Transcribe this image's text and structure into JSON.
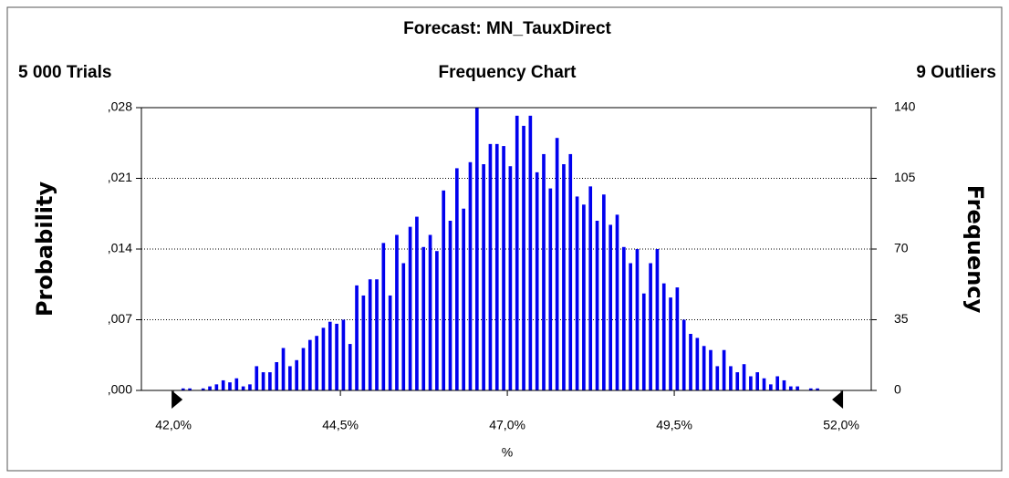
{
  "chart_data": {
    "type": "histogram",
    "title": "Forecast: MN_TauxDirect",
    "trials": "5 000 Trials",
    "subtitle": "Frequency Chart",
    "outliers": "9 Outliers",
    "ylabel": "Probability",
    "y2label": "Frequency",
    "xlabel": "%",
    "bins": [
      42.0,
      42.1,
      42.2,
      42.3,
      42.4,
      42.5,
      42.6,
      42.7,
      42.8,
      42.9,
      43.0,
      43.1,
      43.2,
      43.3,
      43.4,
      43.5,
      43.6,
      43.7,
      43.8,
      43.9,
      44.0,
      44.1,
      44.2,
      44.3,
      44.4,
      44.5,
      44.6,
      44.7,
      44.8,
      44.9,
      45.0,
      45.1,
      45.2,
      45.3,
      45.4,
      45.5,
      45.6,
      45.7,
      45.8,
      45.9,
      46.0,
      46.1,
      46.2,
      46.3,
      46.4,
      46.5,
      46.6,
      46.7,
      46.8,
      46.9,
      47.0,
      47.1,
      47.2,
      47.3,
      47.4,
      47.5,
      47.6,
      47.7,
      47.8,
      47.9,
      48.0,
      48.1,
      48.2,
      48.3,
      48.4,
      48.5,
      48.6,
      48.7,
      48.8,
      48.9,
      49.0,
      49.1,
      49.2,
      49.3,
      49.4,
      49.5,
      49.6,
      49.7,
      49.8,
      49.9,
      50.0,
      50.1,
      50.2,
      50.3,
      50.4,
      50.5,
      50.6,
      50.7,
      50.8,
      50.9,
      51.0,
      51.1,
      51.2,
      51.3,
      51.4,
      51.5,
      51.6,
      51.7,
      51.8,
      51.9,
      52.0
    ],
    "series": [
      {
        "name": "Frequency",
        "color": "#0000ee",
        "axis": "y2",
        "values": [
          0,
          1,
          1,
          0,
          1,
          2,
          3,
          5,
          4,
          6,
          2,
          3,
          12,
          9,
          9,
          14,
          21,
          12,
          15,
          21,
          25,
          27,
          31,
          34,
          33,
          35,
          23,
          52,
          47,
          55,
          55,
          73,
          47,
          77,
          63,
          81,
          86,
          71,
          77,
          69,
          99,
          84,
          110,
          90,
          113,
          140,
          112,
          122,
          122,
          121,
          111,
          136,
          131,
          136,
          108,
          117,
          100,
          125,
          112,
          117,
          96,
          92,
          101,
          84,
          97,
          82,
          87,
          71,
          63,
          70,
          48,
          63,
          70,
          53,
          46,
          51,
          35,
          28,
          26,
          22,
          20,
          12,
          20,
          12,
          9,
          13,
          7,
          9,
          6,
          3,
          7,
          5,
          2,
          2,
          0,
          1,
          1,
          0,
          0,
          0
        ]
      }
    ],
    "xlim": [
      41.52,
      52.45
    ],
    "xticks": [
      {
        "value": 42.0,
        "label": "42,0%"
      },
      {
        "value": 44.5,
        "label": "44,5%"
      },
      {
        "value": 47.0,
        "label": "47,0%"
      },
      {
        "value": 49.5,
        "label": "49,5%"
      },
      {
        "value": 52.0,
        "label": "52,0%"
      }
    ],
    "ylim": [
      0,
      0.028
    ],
    "yticks": [
      {
        "value": 0,
        "label": ",000"
      },
      {
        "value": 0.007,
        "label": ",007"
      },
      {
        "value": 0.014,
        "label": ",014"
      },
      {
        "value": 0.021,
        "label": ",021"
      },
      {
        "value": 0.028,
        "label": ",028"
      }
    ],
    "y2lim": [
      0,
      140
    ],
    "y2ticks": [
      0,
      35,
      70,
      105,
      140
    ],
    "grid": true
  }
}
